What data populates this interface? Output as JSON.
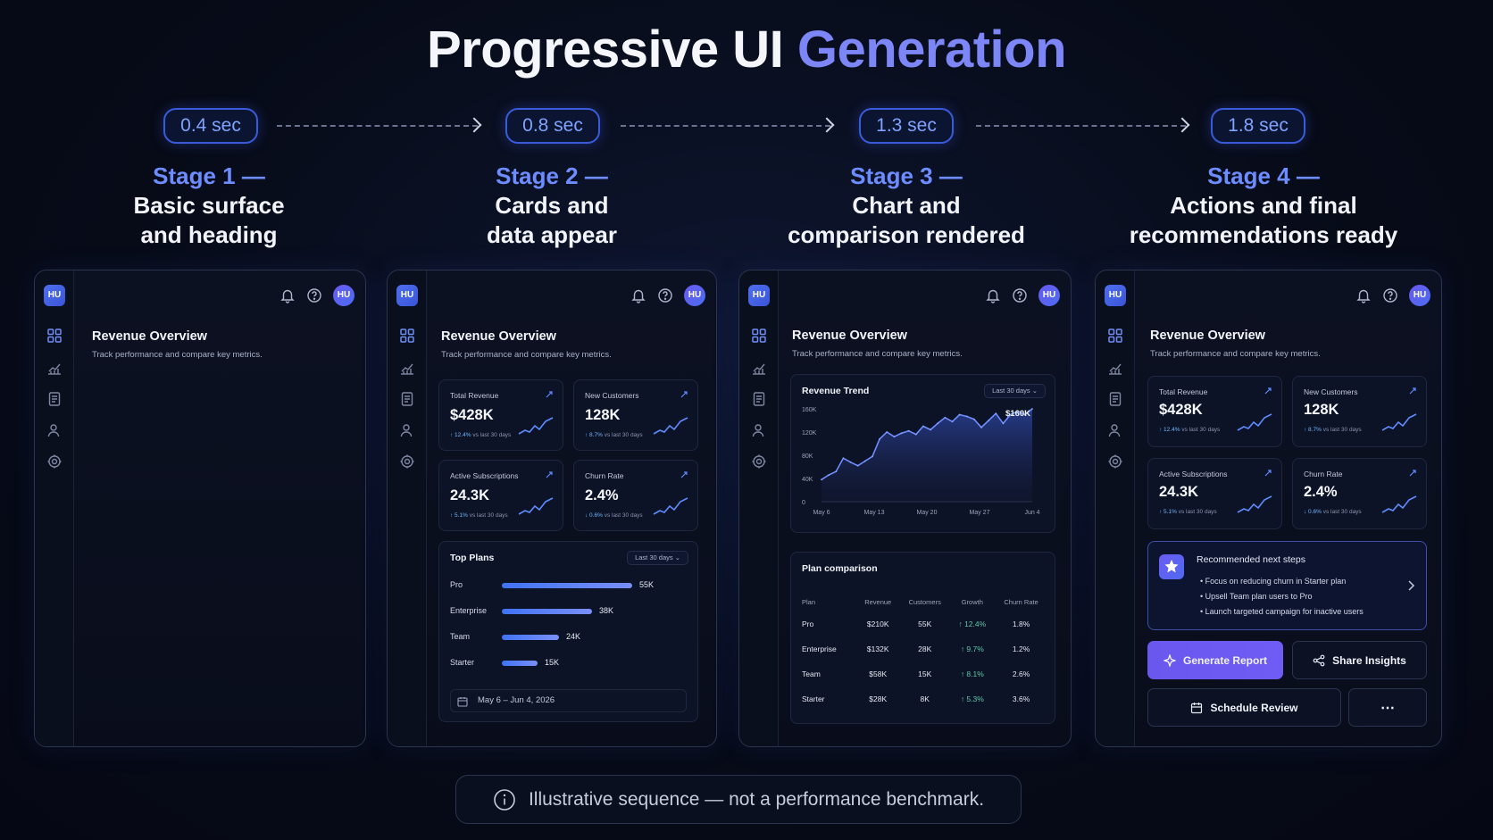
{
  "title": {
    "main": "Progressive UI",
    "accent": "Generation"
  },
  "stages": [
    {
      "time": "0.4 sec",
      "num": "Stage 1 —",
      "desc": "Basic surface\nand heading"
    },
    {
      "time": "0.8 sec",
      "num": "Stage 2 —",
      "desc": "Cards and\ndata appear"
    },
    {
      "time": "1.3 sec",
      "num": "Stage 3 —",
      "desc": "Chart and\ncomparison rendered"
    },
    {
      "time": "1.8 sec",
      "num": "Stage 4 —",
      "desc": "Actions and final\nrecommendations ready"
    }
  ],
  "app": {
    "logo": "HU",
    "avatar": "HU",
    "page_title": "Revenue Overview",
    "page_subtitle": "Track performance and compare key metrics."
  },
  "metrics": [
    {
      "label": "Total Revenue",
      "value": "$428K",
      "change": "↑ 12.4%",
      "note": "vs last 30 days"
    },
    {
      "label": "New Customers",
      "value": "128K",
      "change": "↑ 8.7%",
      "note": "vs last 30 days"
    },
    {
      "label": "Active Subscriptions",
      "value": "24.3K",
      "change": "↑ 5.1%",
      "note": "vs last 30 days"
    },
    {
      "label": "Churn Rate",
      "value": "2.4%",
      "change": "↓ 0.6%",
      "note": "vs last 30 days"
    }
  ],
  "top_plans": {
    "title": "Top Plans",
    "dropdown": "Last 30 days",
    "items": [
      {
        "label": "Pro",
        "value": "55K",
        "num": 55
      },
      {
        "label": "Enterprise",
        "value": "38K",
        "num": 38
      },
      {
        "label": "Team",
        "value": "24K",
        "num": 24
      },
      {
        "label": "Starter",
        "value": "15K",
        "num": 15
      }
    ],
    "date_range": "May 6 – Jun 4, 2026"
  },
  "revenue_trend": {
    "title": "Revenue Trend",
    "dropdown": "Last 30 days",
    "peak_label": "$160K",
    "y_ticks": [
      "160K",
      "120K",
      "80K",
      "40K",
      "0"
    ],
    "x_ticks": [
      "May 6",
      "May 13",
      "May 20",
      "May 27",
      "Jun 4"
    ],
    "values": [
      38,
      46,
      52,
      75,
      68,
      62,
      70,
      78,
      108,
      120,
      112,
      118,
      122,
      116,
      130,
      124,
      135,
      145,
      138,
      150,
      147,
      142,
      128,
      140,
      152,
      135,
      150,
      156,
      150,
      160
    ]
  },
  "plan_comparison": {
    "title": "Plan comparison",
    "headers": [
      "Plan",
      "Revenue",
      "Customers",
      "Growth",
      "Churn Rate"
    ],
    "rows": [
      [
        "Pro",
        "$210K",
        "55K",
        "↑ 12.4%",
        "1.8%"
      ],
      [
        "Enterprise",
        "$132K",
        "28K",
        "↑ 9.7%",
        "1.2%"
      ],
      [
        "Team",
        "$58K",
        "15K",
        "↑ 8.1%",
        "2.6%"
      ],
      [
        "Starter",
        "$28K",
        "8K",
        "↑ 5.3%",
        "3.6%"
      ]
    ]
  },
  "recommendations": {
    "title": "Recommended next steps",
    "items": [
      "Focus on reducing churn in Starter plan",
      "Upsell Team plan users to Pro",
      "Launch targeted campaign for inactive users"
    ]
  },
  "actions": {
    "generate": "Generate Report",
    "share": "Share Insights",
    "schedule": "Schedule Review",
    "more": "⋯"
  },
  "footer": "Illustrative sequence — not a performance benchmark.",
  "colors": {
    "accent": "#7d86f6",
    "pill_border": "#3a5bd8",
    "primary_button": "#6a57ee"
  }
}
